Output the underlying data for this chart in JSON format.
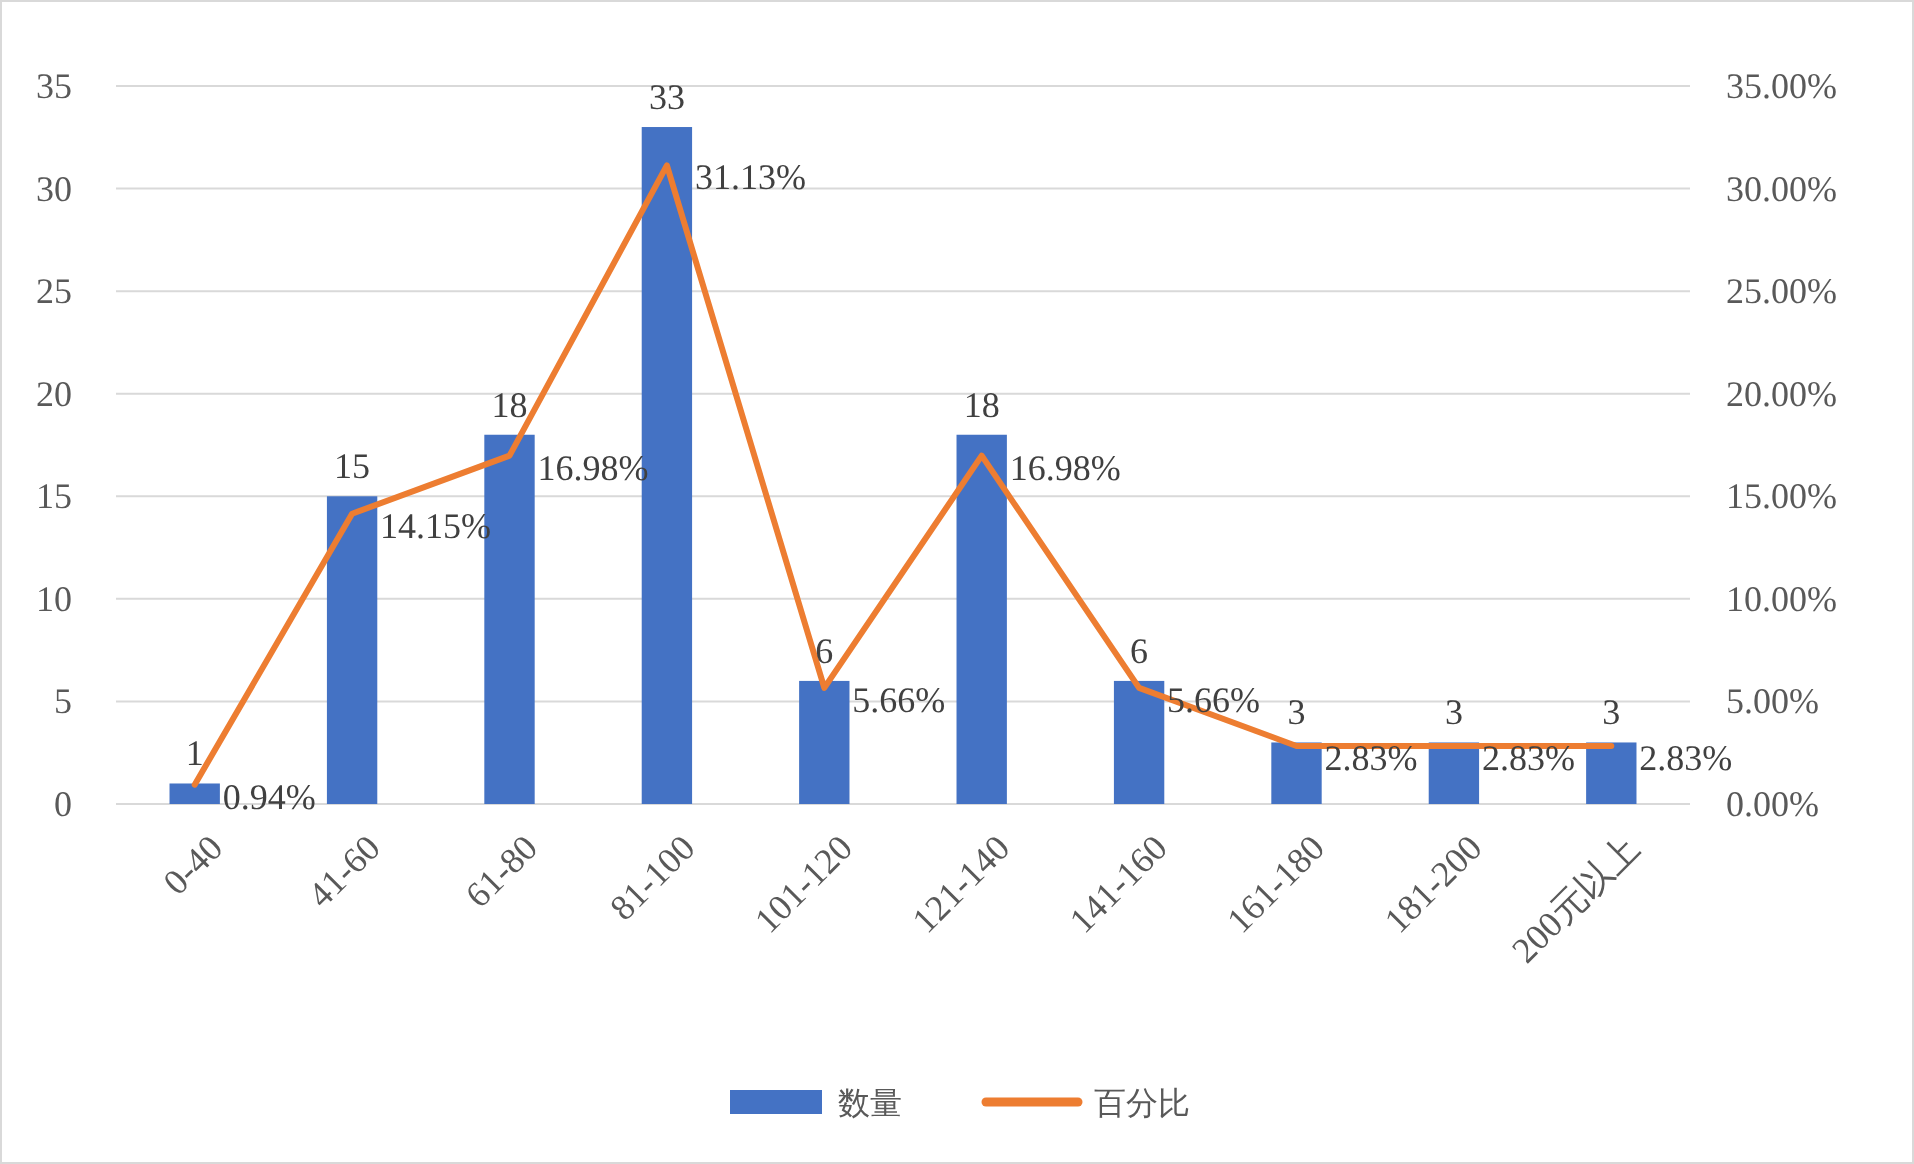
{
  "chart_data": {
    "type": "bar",
    "categories": [
      "0-40",
      "41-60",
      "61-80",
      "81-100",
      "101-120",
      "121-140",
      "141-160",
      "161-180",
      "181-200",
      "200元以上"
    ],
    "series": [
      {
        "name": "数量",
        "color": "#4472c4",
        "values": [
          1,
          15,
          18,
          33,
          6,
          18,
          6,
          3,
          3,
          3
        ],
        "value_labels": [
          "1",
          "15",
          "18",
          "33",
          "6",
          "18",
          "6",
          "3",
          "3",
          "3"
        ]
      },
      {
        "name": "百分比",
        "type": "line",
        "axis": "y2",
        "color": "#ed7d31",
        "values": [
          0.94,
          14.15,
          16.98,
          31.13,
          5.66,
          16.98,
          5.66,
          2.83,
          2.83,
          2.83
        ],
        "value_labels": [
          "0.94%",
          "14.15%",
          "16.98%",
          "31.13%",
          "5.66%",
          "16.98%",
          "5.66%",
          "2.83%",
          "2.83%",
          "2.83%"
        ]
      }
    ],
    "ylim": [
      0,
      35
    ],
    "yticks": [
      0,
      5,
      10,
      15,
      20,
      25,
      30,
      35
    ],
    "y2lim": [
      0,
      35
    ],
    "y2ticks": [
      {
        "value": 0,
        "label": "0.00%"
      },
      {
        "value": 5,
        "label": "5.00%"
      },
      {
        "value": 10,
        "label": "10.00%"
      },
      {
        "value": 15,
        "label": "15.00%"
      },
      {
        "value": 20,
        "label": "20.00%"
      },
      {
        "value": 25,
        "label": "25.00%"
      },
      {
        "value": 30,
        "label": "30.00%"
      },
      {
        "value": 35,
        "label": "35.00%"
      }
    ],
    "grid": "y",
    "legend": "bottom",
    "marker": "none",
    "line_style": "solid"
  }
}
